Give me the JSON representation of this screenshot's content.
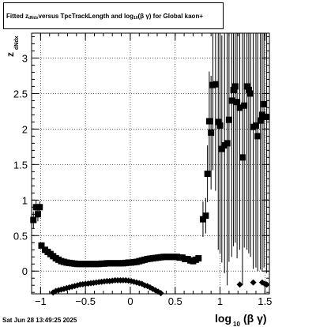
{
  "title": {
    "part1": "Fitted  z",
    "sub1": "dNdx",
    "part2": "  versus TpcTrackLength and log",
    "sub2": "10",
    "part3": " (β  γ) for Global kaon+"
  },
  "timestamp": "Sat Jun 28 13:49:25 2025",
  "chart_data": {
    "type": "scatter",
    "xlabel": "log10(β γ)",
    "ylabel": "z dNdx",
    "xlim": [
      -1.1,
      1.55
    ],
    "ylim": [
      -0.32,
      3.35
    ],
    "x_ticks": [
      -1,
      -0.5,
      0,
      0.5,
      1,
      1.5
    ],
    "x_tick_labels": [
      "−1",
      "−0.5",
      "0",
      "0.5",
      "1",
      "1.5"
    ],
    "y_ticks": [
      0,
      0.5,
      1,
      1.5,
      2,
      2.5,
      3
    ],
    "y_tick_labels": [
      "0",
      "0.5",
      "1",
      "1.5",
      "2",
      "2.5",
      "3"
    ],
    "grid": true,
    "series": [
      {
        "marker": "square",
        "points": [
          {
            "x": -1.08,
            "y": 0.72,
            "err": 0.12
          },
          {
            "x": -1.05,
            "y": 0.9,
            "err": 0.1
          },
          {
            "x": -1.03,
            "y": 0.8,
            "err": 0.1
          },
          {
            "x": -1.01,
            "y": 0.9,
            "err": 0.08
          },
          {
            "x": -0.99,
            "y": 0.36,
            "err": 0.03
          },
          {
            "x": -0.95,
            "y": 0.3
          },
          {
            "x": -0.92,
            "y": 0.27
          },
          {
            "x": -0.89,
            "y": 0.24
          },
          {
            "x": -0.86,
            "y": 0.21
          },
          {
            "x": -0.83,
            "y": 0.18
          },
          {
            "x": -0.8,
            "y": 0.16
          },
          {
            "x": -0.77,
            "y": 0.14
          },
          {
            "x": -0.74,
            "y": 0.13
          },
          {
            "x": -0.71,
            "y": 0.12
          },
          {
            "x": -0.68,
            "y": 0.115
          },
          {
            "x": -0.65,
            "y": 0.11
          },
          {
            "x": -0.62,
            "y": 0.105
          },
          {
            "x": -0.59,
            "y": 0.1
          },
          {
            "x": -0.56,
            "y": 0.1
          },
          {
            "x": -0.53,
            "y": 0.1
          },
          {
            "x": -0.5,
            "y": 0.1
          },
          {
            "x": -0.47,
            "y": 0.1
          },
          {
            "x": -0.44,
            "y": 0.1
          },
          {
            "x": -0.41,
            "y": 0.1
          },
          {
            "x": -0.38,
            "y": 0.1
          },
          {
            "x": -0.35,
            "y": 0.1
          },
          {
            "x": -0.32,
            "y": 0.105
          },
          {
            "x": -0.29,
            "y": 0.105
          },
          {
            "x": -0.26,
            "y": 0.11
          },
          {
            "x": -0.23,
            "y": 0.11
          },
          {
            "x": -0.2,
            "y": 0.11
          },
          {
            "x": -0.17,
            "y": 0.11
          },
          {
            "x": -0.14,
            "y": 0.11
          },
          {
            "x": -0.11,
            "y": 0.11
          },
          {
            "x": -0.08,
            "y": 0.11
          },
          {
            "x": -0.05,
            "y": 0.115
          },
          {
            "x": -0.02,
            "y": 0.12
          },
          {
            "x": 0.01,
            "y": 0.12
          },
          {
            "x": 0.04,
            "y": 0.125
          },
          {
            "x": 0.07,
            "y": 0.13
          },
          {
            "x": 0.1,
            "y": 0.14
          },
          {
            "x": 0.13,
            "y": 0.15
          },
          {
            "x": 0.16,
            "y": 0.16
          },
          {
            "x": 0.19,
            "y": 0.17
          },
          {
            "x": 0.22,
            "y": 0.175
          },
          {
            "x": 0.25,
            "y": 0.18
          },
          {
            "x": 0.28,
            "y": 0.185
          },
          {
            "x": 0.31,
            "y": 0.19
          },
          {
            "x": 0.34,
            "y": 0.195
          },
          {
            "x": 0.37,
            "y": 0.2
          },
          {
            "x": 0.4,
            "y": 0.2
          },
          {
            "x": 0.43,
            "y": 0.2
          },
          {
            "x": 0.46,
            "y": 0.2
          },
          {
            "x": 0.49,
            "y": 0.2
          },
          {
            "x": 0.52,
            "y": 0.2
          },
          {
            "x": 0.55,
            "y": 0.19
          },
          {
            "x": 0.58,
            "y": 0.19
          },
          {
            "x": 0.61,
            "y": 0.17
          },
          {
            "x": 0.64,
            "y": 0.17
          },
          {
            "x": 0.67,
            "y": 0.15
          },
          {
            "x": 0.7,
            "y": 0.14
          },
          {
            "x": 0.73,
            "y": 0.16
          },
          {
            "x": 0.76,
            "y": 0.18
          },
          {
            "x": 0.81,
            "y": 0.73,
            "err": 0.25
          },
          {
            "x": 0.84,
            "y": 0.78,
            "err": 0.25
          },
          {
            "x": 0.86,
            "y": 1.37,
            "err": 0.4
          },
          {
            "x": 0.88,
            "y": 2.11,
            "err": 0.7
          },
          {
            "x": 0.9,
            "y": 1.95,
            "err": 0.8
          },
          {
            "x": 0.92,
            "y": 2.62,
            "err": 1.2
          },
          {
            "x": 0.95,
            "y": 2.63,
            "err": 1.5
          },
          {
            "x": 0.98,
            "y": 2.1,
            "err": 1.8
          },
          {
            "x": 1.0,
            "y": 2.05,
            "err": 1.8
          },
          {
            "x": 1.02,
            "y": 1.72,
            "err": 1.6
          },
          {
            "x": 1.05,
            "y": 1.77,
            "err": 1.8
          },
          {
            "x": 1.08,
            "y": 1.8,
            "err": 2.0
          },
          {
            "x": 1.1,
            "y": 2.13,
            "err": 2.0
          },
          {
            "x": 1.13,
            "y": 2.4,
            "err": 2.2
          },
          {
            "x": 1.15,
            "y": 2.55,
            "err": 2.2
          },
          {
            "x": 1.17,
            "y": 2.6,
            "err": 2.2
          },
          {
            "x": 1.19,
            "y": 2.38,
            "err": 2.2
          },
          {
            "x": 1.22,
            "y": 2.3,
            "err": 2.0
          },
          {
            "x": 1.25,
            "y": 1.6,
            "err": 1.8
          },
          {
            "x": 1.27,
            "y": 2.33,
            "err": 2.0
          },
          {
            "x": 1.3,
            "y": 2.6,
            "err": 2.3
          },
          {
            "x": 1.32,
            "y": 2.55,
            "err": 2.3
          },
          {
            "x": 1.34,
            "y": 2.5,
            "err": 2.3
          },
          {
            "x": 1.37,
            "y": 2.03,
            "err": 2.0
          },
          {
            "x": 1.4,
            "y": 2.05,
            "err": 2.0
          },
          {
            "x": 1.42,
            "y": 1.9,
            "err": 1.9
          },
          {
            "x": 1.45,
            "y": 2.12,
            "err": 2.1
          },
          {
            "x": 1.47,
            "y": 2.2,
            "err": 2.2
          },
          {
            "x": 1.49,
            "y": 2.35,
            "err": 2.3
          },
          {
            "x": 1.52,
            "y": 2.17,
            "err": 2.2
          }
        ]
      },
      {
        "marker": "diamond",
        "points": [
          {
            "x": -0.86,
            "y": -0.3
          },
          {
            "x": -0.83,
            "y": -0.28
          },
          {
            "x": -0.8,
            "y": -0.27
          },
          {
            "x": -0.77,
            "y": -0.26
          },
          {
            "x": -0.74,
            "y": -0.25
          },
          {
            "x": -0.71,
            "y": -0.24
          },
          {
            "x": -0.68,
            "y": -0.23
          },
          {
            "x": -0.65,
            "y": -0.22
          },
          {
            "x": -0.62,
            "y": -0.21
          },
          {
            "x": -0.59,
            "y": -0.2
          },
          {
            "x": -0.56,
            "y": -0.19
          },
          {
            "x": -0.53,
            "y": -0.185
          },
          {
            "x": -0.5,
            "y": -0.18
          },
          {
            "x": -0.47,
            "y": -0.175
          },
          {
            "x": -0.44,
            "y": -0.17
          },
          {
            "x": -0.41,
            "y": -0.165
          },
          {
            "x": -0.38,
            "y": -0.16
          },
          {
            "x": -0.35,
            "y": -0.155
          },
          {
            "x": -0.32,
            "y": -0.15
          },
          {
            "x": -0.29,
            "y": -0.145
          },
          {
            "x": -0.26,
            "y": -0.14
          },
          {
            "x": -0.23,
            "y": -0.14
          },
          {
            "x": -0.2,
            "y": -0.135
          },
          {
            "x": -0.17,
            "y": -0.13
          },
          {
            "x": -0.14,
            "y": -0.13
          },
          {
            "x": -0.11,
            "y": -0.13
          },
          {
            "x": -0.08,
            "y": -0.13
          },
          {
            "x": -0.05,
            "y": -0.13
          },
          {
            "x": -0.02,
            "y": -0.135
          },
          {
            "x": 0.01,
            "y": -0.14
          },
          {
            "x": 0.04,
            "y": -0.15
          },
          {
            "x": 0.07,
            "y": -0.16
          },
          {
            "x": 0.1,
            "y": -0.17
          },
          {
            "x": 0.13,
            "y": -0.18
          },
          {
            "x": 0.16,
            "y": -0.2
          },
          {
            "x": 0.19,
            "y": -0.21
          },
          {
            "x": 0.22,
            "y": -0.23
          },
          {
            "x": 0.25,
            "y": -0.25
          },
          {
            "x": 0.28,
            "y": -0.27
          },
          {
            "x": 0.31,
            "y": -0.29
          },
          {
            "x": 0.34,
            "y": -0.31
          },
          {
            "x": 1.22,
            "y": -0.19
          },
          {
            "x": 1.37,
            "y": -0.16
          },
          {
            "x": 1.47,
            "y": -0.16
          },
          {
            "x": 1.5,
            "y": -0.18
          },
          {
            "x": 1.52,
            "y": -0.19
          }
        ]
      }
    ]
  }
}
